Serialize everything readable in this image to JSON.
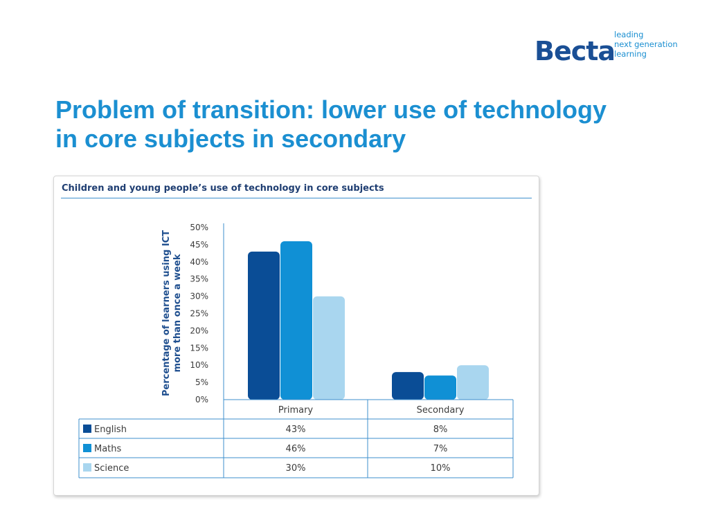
{
  "logo": {
    "word": "Becta",
    "tagline": [
      "leading",
      "next generation",
      "learning"
    ]
  },
  "slide": {
    "title_line1": "Problem of transition: lower use of technology",
    "title_line2": "in core subjects in secondary"
  },
  "colors": {
    "title": "#1b8fd1",
    "english": "#0a4d96",
    "maths": "#1090d5",
    "science": "#a9d6ef",
    "axis": "#3d8fcc"
  },
  "chart_data": {
    "type": "bar",
    "title": "Children and young people’s use of technology in core subjects",
    "ylabel_lines": [
      "Percentage of learners using ICT",
      "more than once a week"
    ],
    "categories": [
      "Primary",
      "Secondary"
    ],
    "series": [
      {
        "name": "English",
        "values": [
          43,
          8
        ],
        "display": [
          "43%",
          "8%"
        ]
      },
      {
        "name": "Maths",
        "values": [
          46,
          7
        ],
        "display": [
          "46%",
          "7%"
        ]
      },
      {
        "name": "Science",
        "values": [
          30,
          10
        ],
        "display": [
          "30%",
          "10%"
        ]
      }
    ],
    "ylim": [
      0,
      50
    ],
    "yticks": [
      "0%",
      "5%",
      "10%",
      "15%",
      "20%",
      "25%",
      "30%",
      "35%",
      "40%",
      "45%",
      "50%"
    ],
    "legend": "data-table",
    "grid": false
  }
}
